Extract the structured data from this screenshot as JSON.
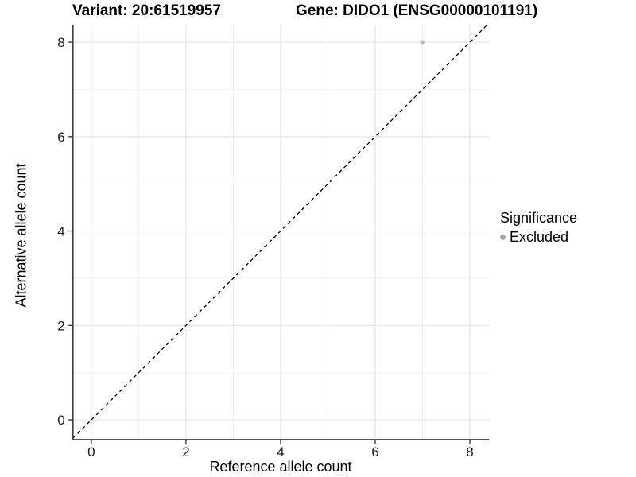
{
  "titles": {
    "variant": "Variant: 20:61519957",
    "gene": "Gene: DIDO1 (ENSG00000101191)"
  },
  "chart_data": {
    "type": "scatter",
    "title": "Variant: 20:61519957  Gene: DIDO1 (ENSG00000101191)",
    "xlabel": "Reference allele count",
    "ylabel": "Alternative allele count",
    "xlim": [
      -0.39,
      8.41
    ],
    "ylim": [
      -0.42,
      8.36
    ],
    "x_ticks": [
      0,
      2,
      4,
      6,
      8
    ],
    "y_ticks": [
      0,
      2,
      4,
      6,
      8
    ],
    "x_minor_ticks": [
      1,
      3,
      5,
      7
    ],
    "y_minor_ticks": [
      1,
      3,
      5,
      7
    ],
    "grid": true,
    "series": [
      {
        "name": "Excluded",
        "points": [
          {
            "x": 7,
            "y": 8
          }
        ]
      }
    ],
    "abline": {
      "slope": 1,
      "intercept": 0,
      "style": "dashed"
    },
    "legend": {
      "position": "right",
      "title": "Significance",
      "entries": [
        {
          "label": "Excluded",
          "color": "#a8a8a8"
        }
      ]
    }
  },
  "colors": {
    "background": "#ffffff",
    "point": "#b8b8b8",
    "legend_dot": "#a8a8a8",
    "grid_major": "#e3e3e3",
    "grid_minor": "#f2f2f2",
    "axis_line": "#3d3d3d",
    "tick_label": "#1a1a1a",
    "abline": "#000000"
  }
}
